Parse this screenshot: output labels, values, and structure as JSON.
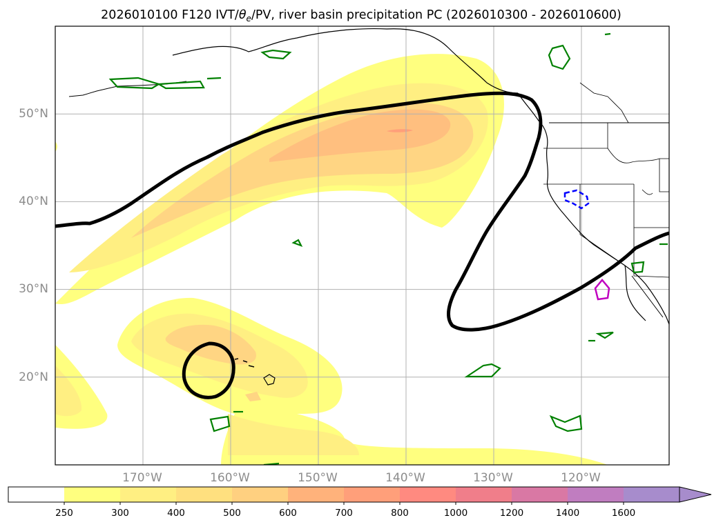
{
  "title": {
    "prefix": "2026010100 F120 IVT/",
    "theta": "θ",
    "theta_sub": "e",
    "suffix": "/PV, river basin precipitation PC (2026010300 - 2026010600)"
  },
  "map": {
    "lon_range": [
      -180,
      -110
    ],
    "lat_range": [
      10,
      60
    ],
    "lon_ticks": [
      {
        "value": -170,
        "label": "170°W"
      },
      {
        "value": -160,
        "label": "160°W"
      },
      {
        "value": -150,
        "label": "150°W"
      },
      {
        "value": -140,
        "label": "140°W"
      },
      {
        "value": -130,
        "label": "130°W"
      },
      {
        "value": -120,
        "label": "120°W"
      }
    ],
    "lat_ticks": [
      {
        "value": 20,
        "label": "20°N"
      },
      {
        "value": 30,
        "label": "30°N"
      },
      {
        "value": 40,
        "label": "40°N"
      },
      {
        "value": 50,
        "label": "50°N"
      }
    ],
    "colors": {
      "ivt_250": "#ffff7f",
      "ivt_300": "#ffef82",
      "ivt_400": "#ffd583",
      "ivt_500": "#ffb27b",
      "pv_contour": "#000000",
      "precip_green": "#008000",
      "precip_magenta": "#c000c0",
      "precip_blue": "#0000ff",
      "grid": "#b0b0b0",
      "coast": "#000000"
    }
  },
  "colorbar": {
    "levels": [
      "250",
      "300",
      "400",
      "500",
      "600",
      "700",
      "800",
      "1000",
      "1200",
      "1400",
      "1600"
    ],
    "colors": [
      "#ffffff",
      "#ffff7f",
      "#ffef82",
      "#ffe07f",
      "#ffd080",
      "#ffb27b",
      "#ff9f7a",
      "#ff8a80",
      "#f07e8a",
      "#d978a4",
      "#c07dc0",
      "#a78ccc"
    ]
  }
}
